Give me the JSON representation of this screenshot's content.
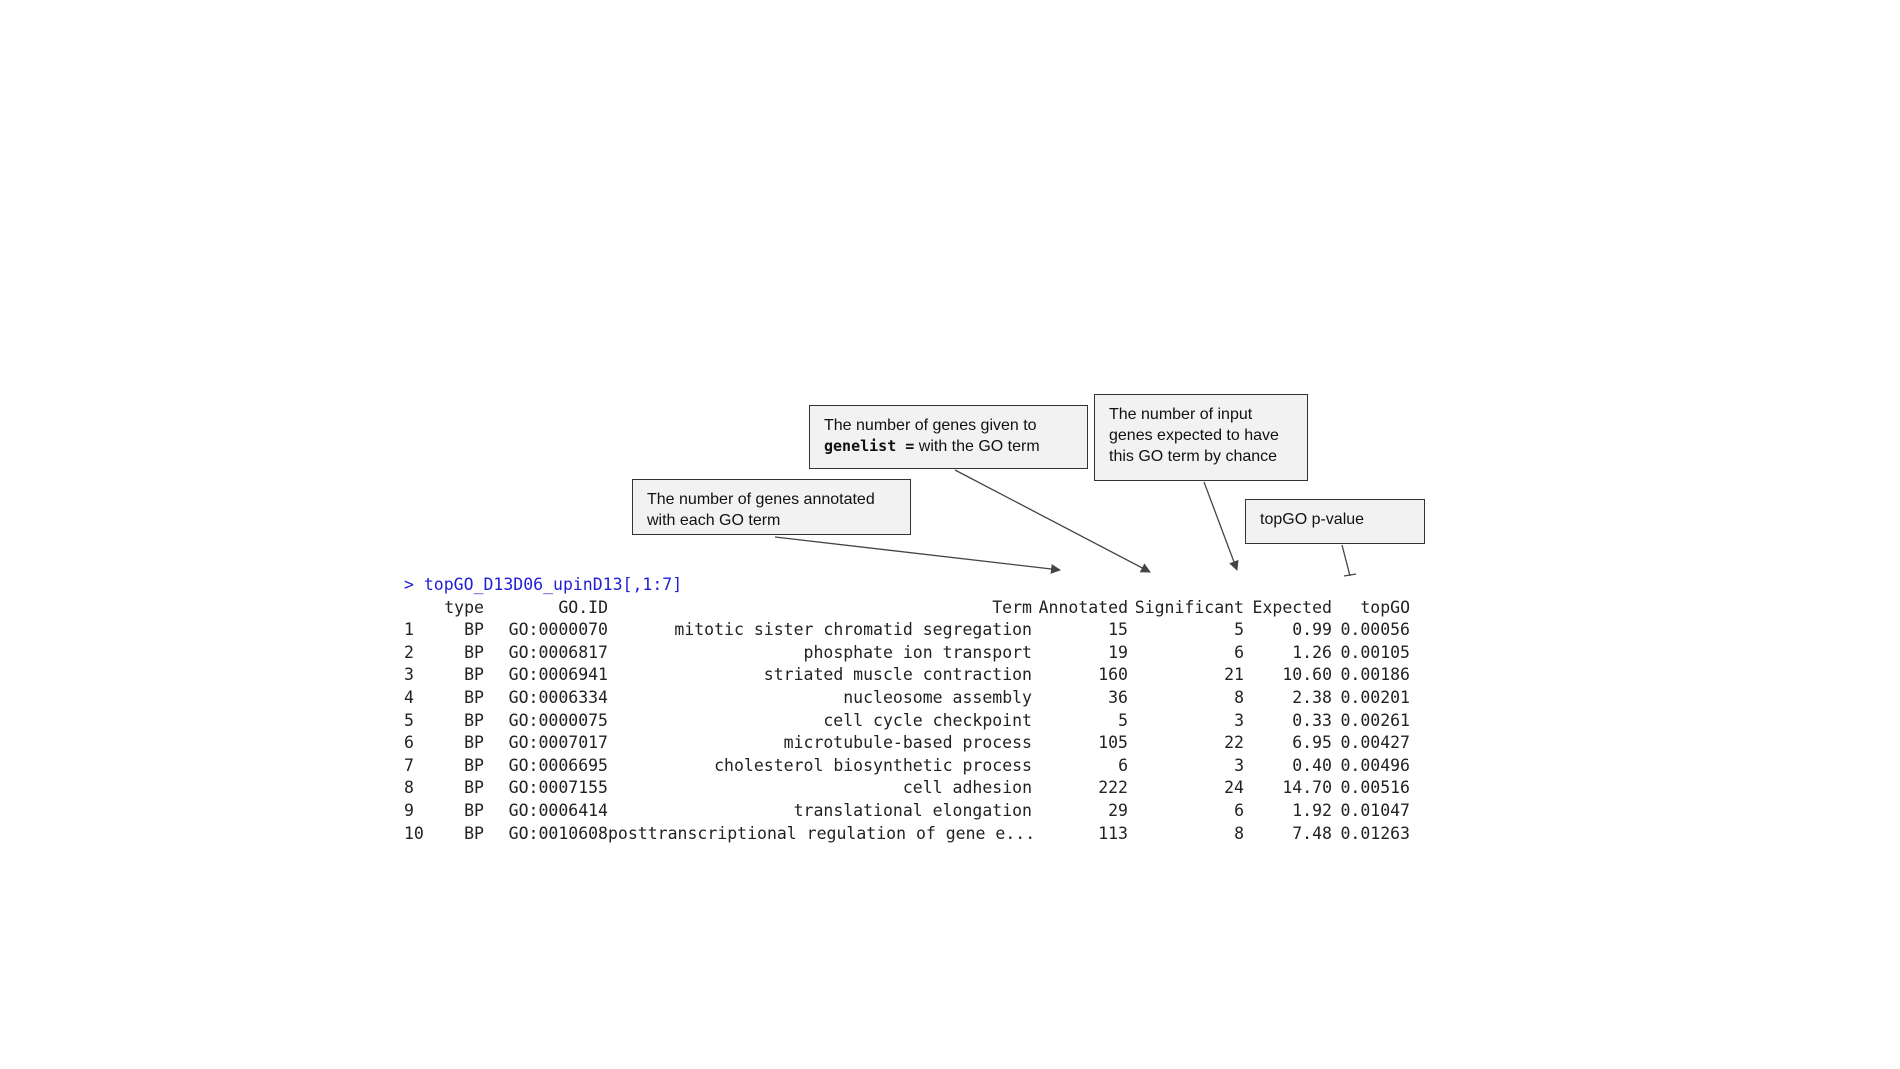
{
  "callouts": {
    "annotated": {
      "line1": "The number of genes annotated",
      "line2": "with each GO term"
    },
    "significant": {
      "line1": "The number of genes given to",
      "code": "genelist =",
      "line2_rest": " with the GO term"
    },
    "expected": {
      "line1": "The number of input",
      "line2": "genes expected to have",
      "line3": "this GO term by chance"
    },
    "topgo": {
      "line1": "topGO p-value"
    }
  },
  "console": {
    "prompt": "> topGO_D13D06_upinD13[,1:7]",
    "prompt_color": "#1f1fd6",
    "headers": [
      "",
      "type",
      "GO.ID",
      "Term",
      "Annotated",
      "Significant",
      "Expected",
      "topGO"
    ],
    "rows": [
      [
        "1",
        "BP",
        "GO:0000070",
        "mitotic sister chromatid segregation",
        "15",
        "5",
        "0.99",
        "0.00056"
      ],
      [
        "2",
        "BP",
        "GO:0006817",
        "phosphate ion transport",
        "19",
        "6",
        "1.26",
        "0.00105"
      ],
      [
        "3",
        "BP",
        "GO:0006941",
        "striated muscle contraction",
        "160",
        "21",
        "10.60",
        "0.00186"
      ],
      [
        "4",
        "BP",
        "GO:0006334",
        "nucleosome assembly",
        "36",
        "8",
        "2.38",
        "0.00201"
      ],
      [
        "5",
        "BP",
        "GO:0000075",
        "cell cycle checkpoint",
        "5",
        "3",
        "0.33",
        "0.00261"
      ],
      [
        "6",
        "BP",
        "GO:0007017",
        "microtubule-based process",
        "105",
        "22",
        "6.95",
        "0.00427"
      ],
      [
        "7",
        "BP",
        "GO:0006695",
        "cholesterol biosynthetic process",
        "6",
        "3",
        "0.40",
        "0.00496"
      ],
      [
        "8",
        "BP",
        "GO:0007155",
        "cell adhesion",
        "222",
        "24",
        "14.70",
        "0.00516"
      ],
      [
        "9",
        "BP",
        "GO:0006414",
        "translational elongation",
        "29",
        "6",
        "1.92",
        "0.01047"
      ],
      [
        "10",
        "BP",
        "GO:0010608",
        "posttranscriptional regulation of gene e...",
        "113",
        "8",
        "7.48",
        "0.01263"
      ]
    ]
  }
}
